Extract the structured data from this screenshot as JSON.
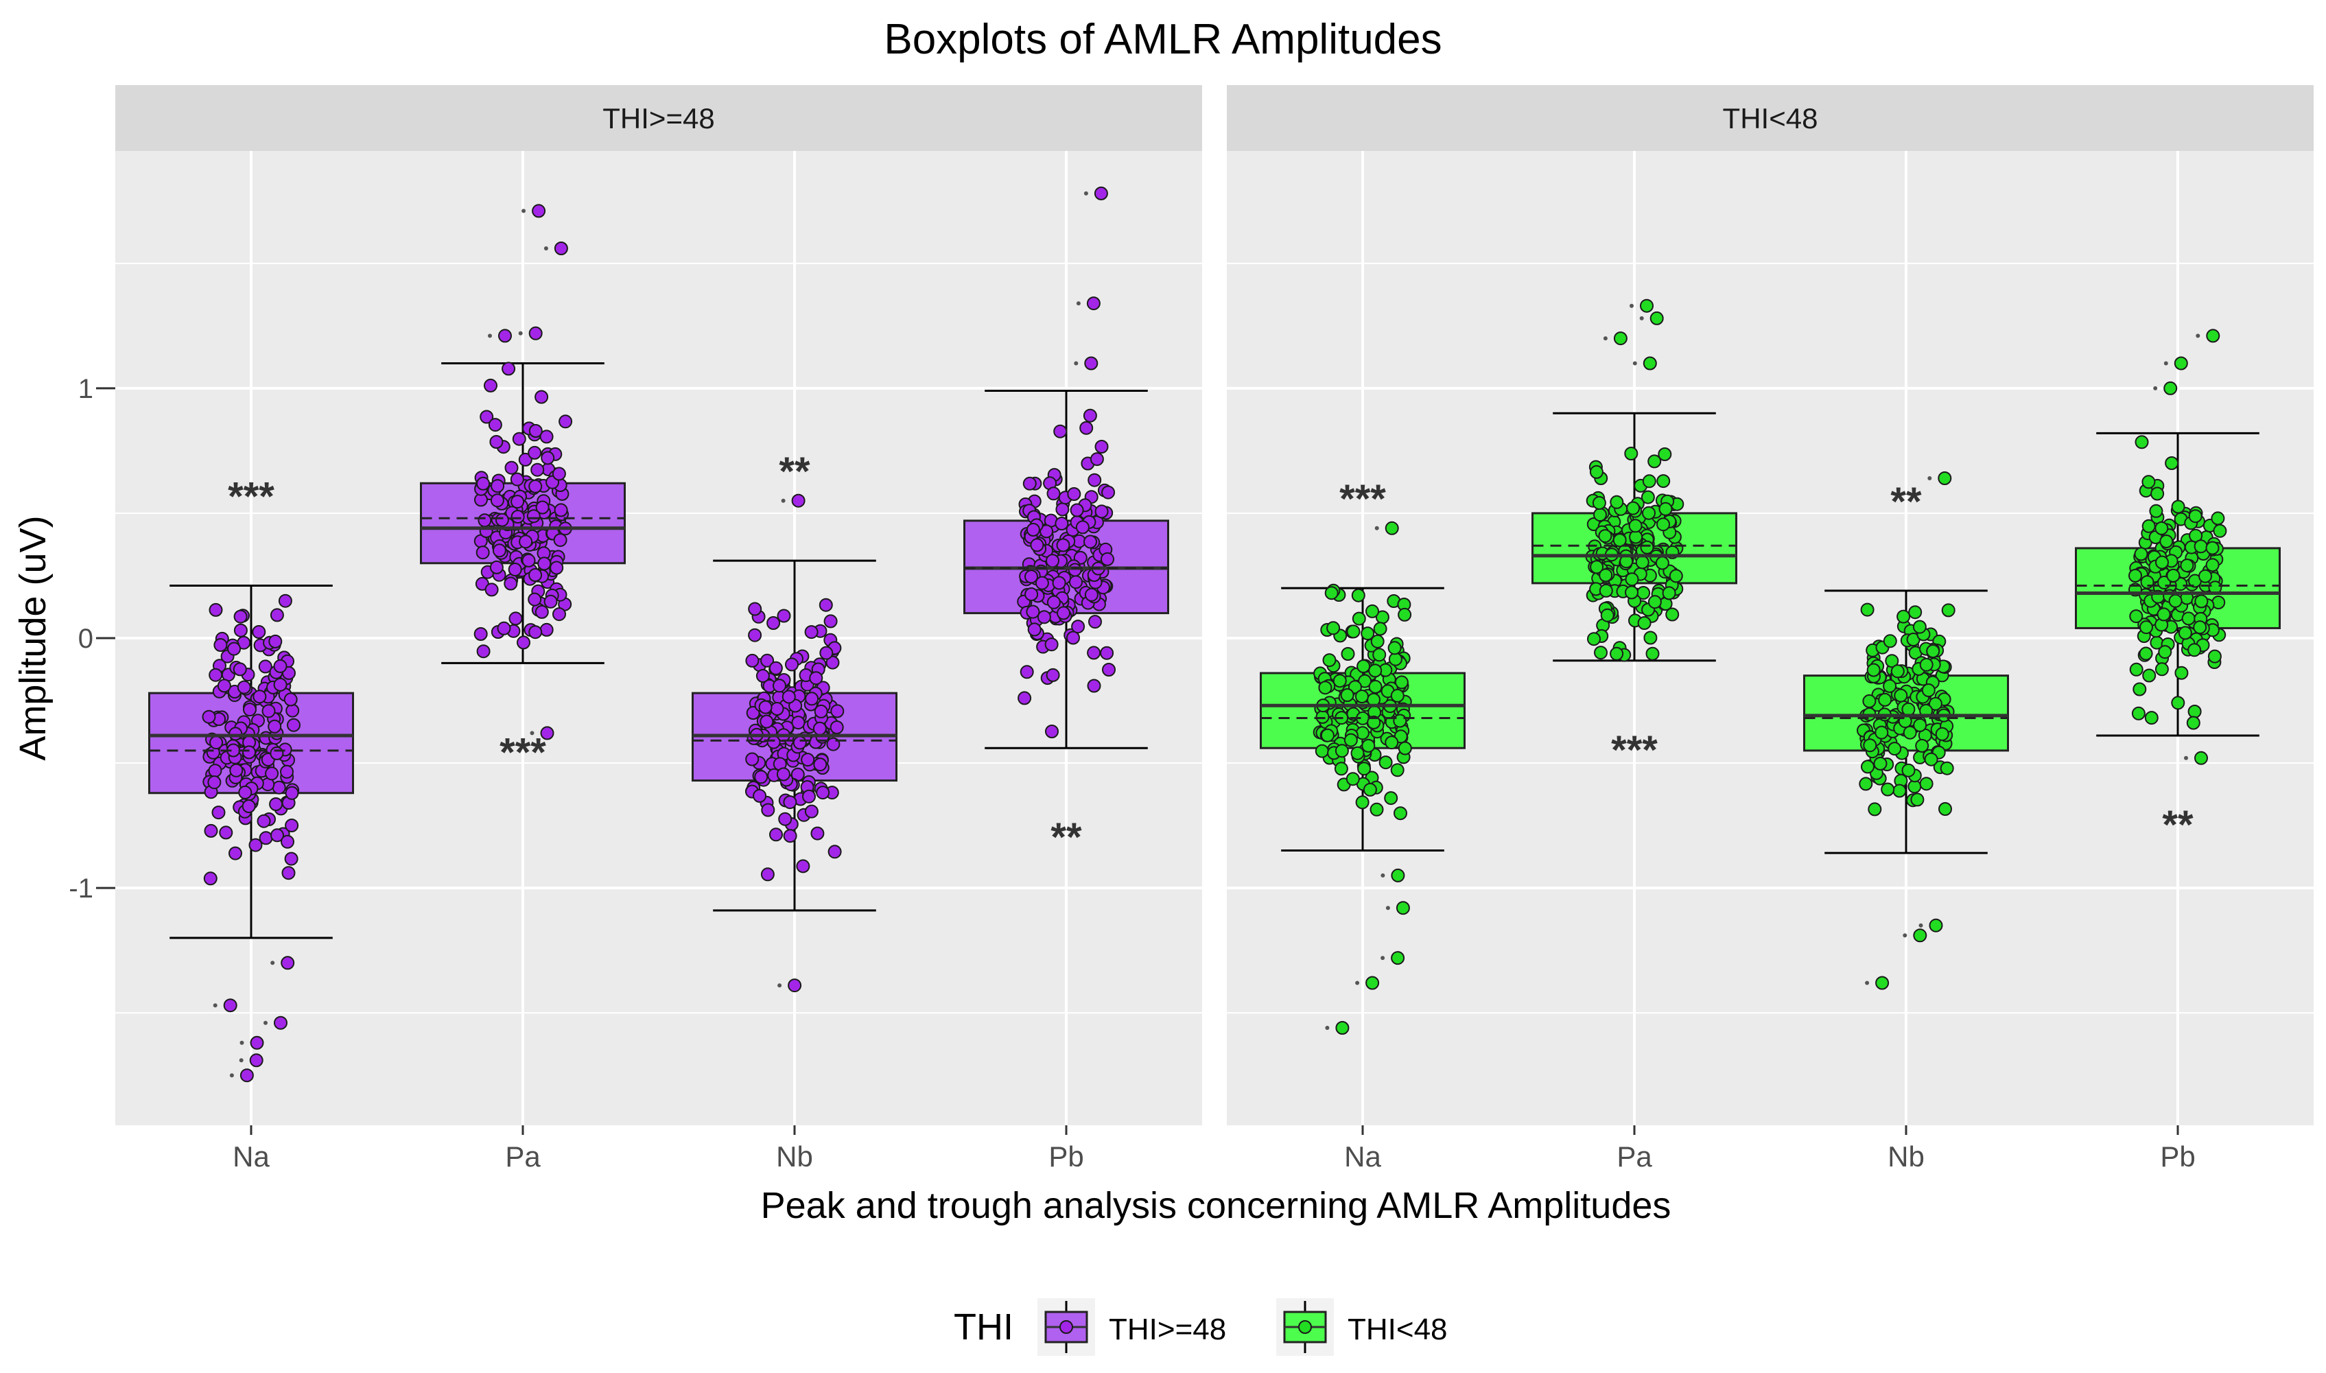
{
  "chart_data": {
    "type": "boxplot",
    "title": "Boxplots of AMLR Amplitudes",
    "xlabel": "Peak and trough analysis concerning AMLR Amplitudes",
    "ylabel": "Amplitude (uV)",
    "ylim": [
      -1.95,
      1.95
    ],
    "yticks": [
      {
        "value": 1,
        "label": "1"
      },
      {
        "value": 0,
        "label": "0"
      },
      {
        "value": -1,
        "label": "-1"
      }
    ],
    "minor_gridlines": [
      1.5,
      0.5,
      -0.5,
      -1.5
    ],
    "categories": [
      "Na",
      "Pa",
      "Nb",
      "Pb"
    ],
    "legend": {
      "title": "THI",
      "position": "bottom",
      "entries": [
        {
          "label": "THI>=48",
          "color": "#b061ef"
        },
        {
          "label": "THI<48",
          "color": "#4dfd4d"
        }
      ]
    },
    "panels": [
      {
        "strip_label": "THI>=48",
        "fill": "#b061ef",
        "point_fill": "#a326e8",
        "boxes": [
          {
            "category": "Na",
            "whisker_low": -1.2,
            "q1": -0.62,
            "median": -0.39,
            "mean": -0.45,
            "q3": -0.22,
            "whisker_high": 0.21,
            "significance_above": "***",
            "significance_below": "",
            "outliers": [
              -1.3,
              -1.47,
              -1.54,
              -1.62,
              -1.69,
              -1.75
            ]
          },
          {
            "category": "Pa",
            "whisker_low": -0.1,
            "q1": 0.3,
            "median": 0.44,
            "mean": 0.48,
            "q3": 0.62,
            "whisker_high": 1.1,
            "significance_above": "",
            "significance_below": "***",
            "outliers": [
              1.21,
              1.22,
              1.56,
              1.71,
              -0.38
            ]
          },
          {
            "category": "Nb",
            "whisker_low": -1.09,
            "q1": -0.57,
            "median": -0.39,
            "mean": -0.41,
            "q3": -0.22,
            "whisker_high": 0.31,
            "significance_above": "**",
            "significance_below": "",
            "outliers": [
              0.55,
              -1.39
            ]
          },
          {
            "category": "Pb",
            "whisker_low": -0.44,
            "q1": 0.1,
            "median": 0.28,
            "mean": 0.28,
            "q3": 0.47,
            "whisker_high": 0.99,
            "significance_above": "",
            "significance_below": "**",
            "outliers": [
              1.1,
              1.34,
              1.78
            ]
          }
        ]
      },
      {
        "strip_label": "THI<48",
        "fill": "#4dfd4d",
        "point_fill": "#22dc22",
        "boxes": [
          {
            "category": "Na",
            "whisker_low": -0.85,
            "q1": -0.44,
            "median": -0.27,
            "mean": -0.32,
            "q3": -0.14,
            "whisker_high": 0.2,
            "significance_above": "***",
            "significance_below": "",
            "outliers": [
              0.44,
              -0.95,
              -1.08,
              -1.28,
              -1.38,
              -1.56
            ]
          },
          {
            "category": "Pa",
            "whisker_low": -0.09,
            "q1": 0.22,
            "median": 0.33,
            "mean": 0.37,
            "q3": 0.5,
            "whisker_high": 0.9,
            "significance_above": "",
            "significance_below": "***",
            "outliers": [
              1.1,
              1.2,
              1.28,
              1.33
            ]
          },
          {
            "category": "Nb",
            "whisker_low": -0.86,
            "q1": -0.45,
            "median": -0.31,
            "mean": -0.32,
            "q3": -0.15,
            "whisker_high": 0.19,
            "significance_above": "**",
            "significance_below": "",
            "outliers": [
              0.64,
              -1.15,
              -1.19,
              -1.38
            ]
          },
          {
            "category": "Pb",
            "whisker_low": -0.39,
            "q1": 0.04,
            "median": 0.18,
            "mean": 0.21,
            "q3": 0.36,
            "whisker_high": 0.82,
            "significance_above": "",
            "significance_below": "**",
            "outliers": [
              1.0,
              1.1,
              1.21,
              -0.48
            ]
          }
        ]
      }
    ]
  }
}
